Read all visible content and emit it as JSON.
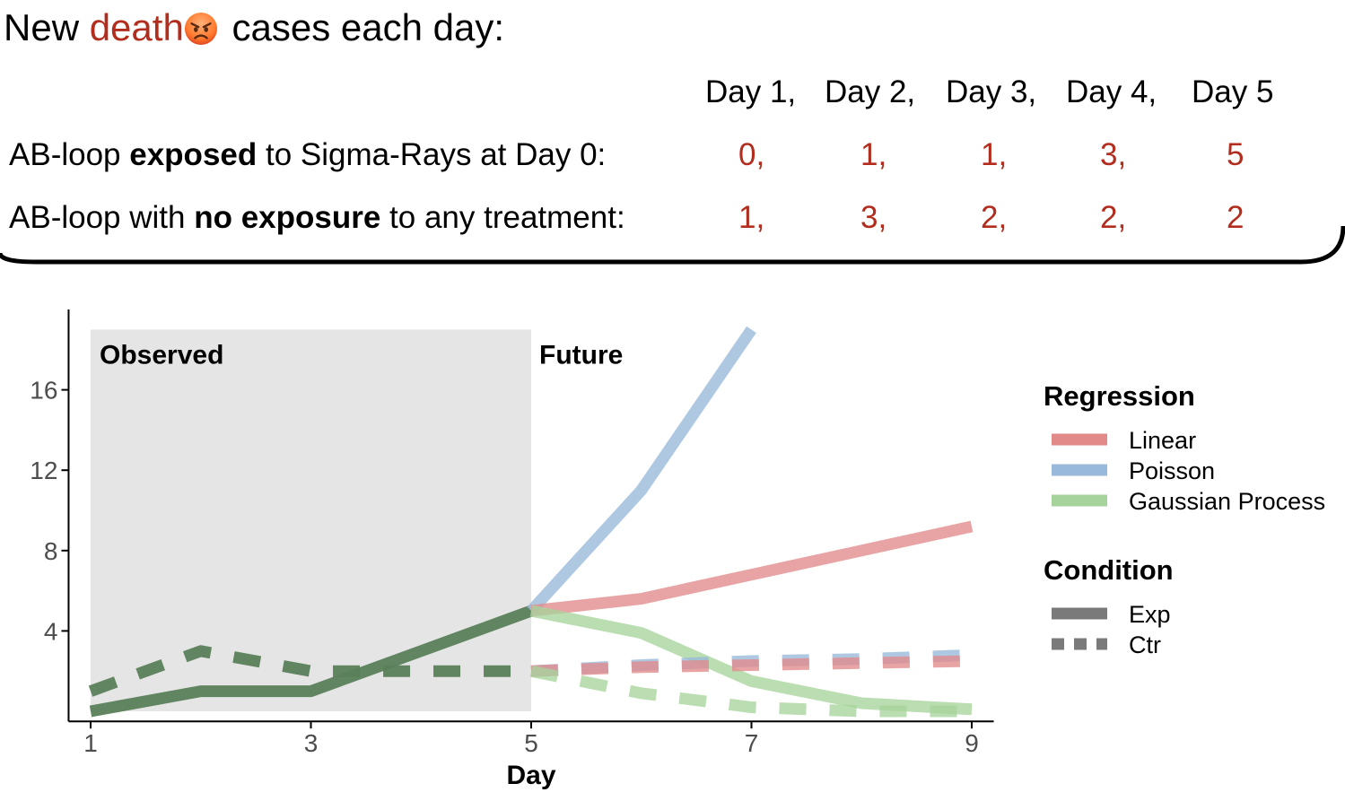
{
  "header": {
    "prefix": "New ",
    "highlight": "death",
    "emoji_icon": "angry-face-icon",
    "suffix": " cases each day:",
    "highlight_color": "#b22d1e"
  },
  "table": {
    "day_headers": [
      "Day 1,",
      "Day 2,",
      "Day 3,",
      "Day 4,",
      "Day 5"
    ],
    "rows": [
      {
        "label_pre": "AB-loop ",
        "label_bold": "exposed",
        "label_post": " to Sigma-Rays at Day 0:",
        "values": [
          "0,",
          "1,",
          "1,",
          "3,",
          "5"
        ]
      },
      {
        "label_pre": "AB-loop with ",
        "label_bold": "no exposure",
        "label_post": " to any treatment:",
        "values": [
          "1,",
          "3,",
          "2,",
          "2,",
          "2"
        ]
      }
    ]
  },
  "chart_data": {
    "type": "line",
    "xlabel": "Day",
    "ylabel": "",
    "xlim": [
      0.8,
      9.2
    ],
    "ylim": [
      -0.5,
      20
    ],
    "x_ticks": [
      "1",
      "3",
      "5",
      "7",
      "9"
    ],
    "y_ticks": [
      "4",
      "8",
      "12",
      "16"
    ],
    "regions": [
      {
        "label": "Observed",
        "x_from": 1,
        "x_to": 5,
        "y_from": 0,
        "y_to": 19
      },
      {
        "label": "Future",
        "x_from": 5
      }
    ],
    "legends": [
      {
        "title": "Regression",
        "entries": [
          {
            "label": "Linear",
            "color": "#e28a8a"
          },
          {
            "label": "Poisson",
            "color": "#98b9da"
          },
          {
            "label": "Gaussian Process",
            "color": "#a6d39b"
          }
        ]
      },
      {
        "title": "Condition",
        "entries": [
          {
            "label": "Exp",
            "style": "solid"
          },
          {
            "label": "Ctr",
            "style": "dashed"
          }
        ]
      }
    ],
    "series": [
      {
        "regression": "Observed",
        "condition": "Exp",
        "color": "#5a7f58",
        "dashed": false,
        "x": [
          1,
          2,
          3,
          4,
          5
        ],
        "y": [
          0,
          1,
          1,
          3,
          5
        ]
      },
      {
        "regression": "Observed",
        "condition": "Ctr",
        "color": "#5a7f58",
        "dashed": true,
        "x": [
          1,
          2,
          3,
          4,
          5
        ],
        "y": [
          1,
          3,
          2,
          2,
          2
        ]
      },
      {
        "regression": "Poisson",
        "condition": "Exp",
        "color": "#98b9da",
        "dashed": false,
        "x": [
          5,
          6,
          7
        ],
        "y": [
          5,
          11,
          19
        ]
      },
      {
        "regression": "Linear",
        "condition": "Exp",
        "color": "#e28a8a",
        "dashed": false,
        "x": [
          5,
          6,
          7,
          8,
          9
        ],
        "y": [
          5,
          5.6,
          6.8,
          8,
          9.2
        ]
      },
      {
        "regression": "Gaussian Process",
        "condition": "Exp",
        "color": "#a6d39b",
        "dashed": false,
        "x": [
          5,
          6,
          7,
          8,
          9
        ],
        "y": [
          5,
          3.9,
          1.5,
          0.4,
          0.1
        ]
      },
      {
        "regression": "Poisson",
        "condition": "Ctr",
        "color": "#98b9da",
        "dashed": true,
        "x": [
          5,
          6,
          7,
          8,
          9
        ],
        "y": [
          2,
          2.3,
          2.5,
          2.6,
          2.8
        ]
      },
      {
        "regression": "Linear",
        "condition": "Ctr",
        "color": "#e28a8a",
        "dashed": true,
        "x": [
          5,
          6,
          7,
          8,
          9
        ],
        "y": [
          2,
          2.2,
          2.3,
          2.4,
          2.5
        ]
      },
      {
        "regression": "Gaussian Process",
        "condition": "Ctr",
        "color": "#a6d39b",
        "dashed": true,
        "x": [
          5,
          6,
          7,
          8,
          9
        ],
        "y": [
          2,
          0.9,
          0.2,
          0,
          0
        ]
      }
    ]
  }
}
